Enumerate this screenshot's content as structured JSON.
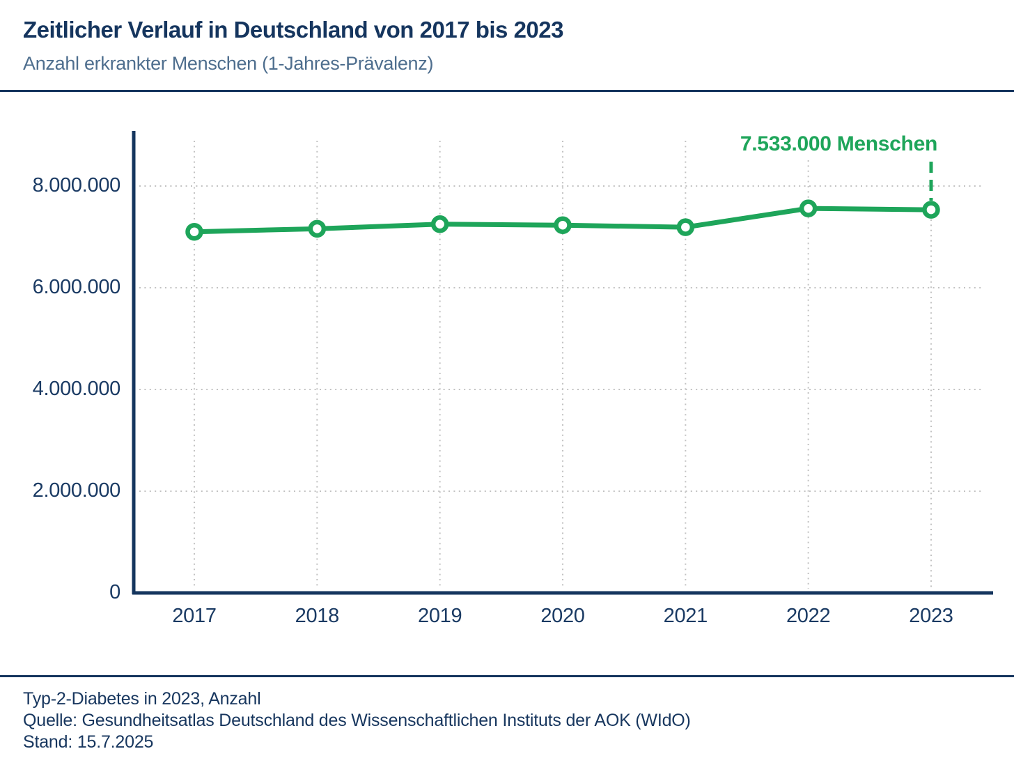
{
  "header": {
    "title": "Zeitlicher Verlauf in Deutschland von 2017 bis 2023",
    "subtitle": "Anzahl erkrankter Menschen (1-Jahres-Prävalenz)"
  },
  "chart_data": {
    "type": "line",
    "title": "Zeitlicher Verlauf in Deutschland von 2017 bis 2023",
    "subtitle": "Anzahl erkrankter Menschen (1-Jahres-Prävalenz)",
    "categories": [
      "2017",
      "2018",
      "2019",
      "2020",
      "2021",
      "2022",
      "2023"
    ],
    "series": [
      {
        "name": "Anzahl erkrankter Menschen (1-Jahres-Prävalenz)",
        "values": [
          7100000,
          7160000,
          7250000,
          7230000,
          7190000,
          7560000,
          7533000
        ]
      }
    ],
    "xlabel": "",
    "ylabel": "",
    "ylim": [
      0,
      9100000
    ],
    "grid": "dotted",
    "legend_position": "none",
    "y_ticks": [
      {
        "value": 0,
        "label": "0"
      },
      {
        "value": 2000000,
        "label": "2.000.000"
      },
      {
        "value": 4000000,
        "label": "4.000.000"
      },
      {
        "value": 6000000,
        "label": "6.000.000"
      },
      {
        "value": 8000000,
        "label": "8.000.000"
      }
    ],
    "annotation": {
      "label": "7.533.000 Menschen",
      "category": "2023",
      "value": 7533000
    },
    "colors": {
      "line": "#1ea55a",
      "marker_fill": "#ffffff",
      "axis": "#15355e",
      "grid": "#c2c2c2",
      "annotation": "#1ea55a",
      "tick_label": "#1a3a63"
    }
  },
  "footer": {
    "line1": "Typ-2-Diabetes in 2023, Anzahl",
    "line2": "Quelle: Gesundheitsatlas Deutschland des Wissenschaftlichen Instituts der AOK (WIdO)",
    "line3": "Stand: 15.7.2025"
  }
}
